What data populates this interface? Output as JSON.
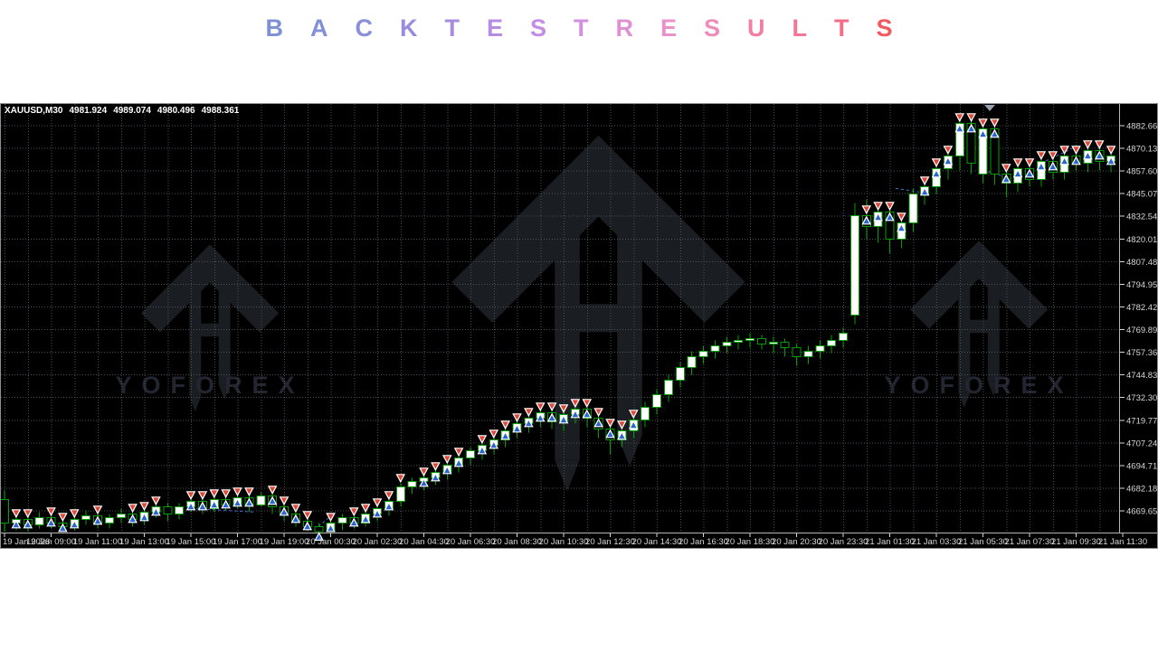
{
  "title": {
    "text": "BACKTEST RESULTS",
    "letters": [
      {
        "ch": "B",
        "color": "#7c90d6"
      },
      {
        "ch": "A",
        "color": "#8290d8"
      },
      {
        "ch": "C",
        "color": "#8b8eda"
      },
      {
        "ch": "K",
        "color": "#998cde"
      },
      {
        "ch": "T",
        "color": "#a98ce1"
      },
      {
        "ch": "E",
        "color": "#b78ce3"
      },
      {
        "ch": "S",
        "color": "#c58ce5"
      },
      {
        "ch": "T",
        "color": "#d28edf"
      },
      {
        "ch": "R",
        "color": "#df90d5"
      },
      {
        "ch": "E",
        "color": "#e992c9"
      },
      {
        "ch": "S",
        "color": "#ef8cba"
      },
      {
        "ch": "U",
        "color": "#f37ea4"
      },
      {
        "ch": "L",
        "color": "#f57594"
      },
      {
        "ch": "T",
        "color": "#f66c86"
      },
      {
        "ch": "S",
        "color": "#f25a60"
      }
    ]
  },
  "chart": {
    "header": {
      "symbol": "XAUUSD,M30",
      "open": "4981.924",
      "high": "4989.074",
      "low": "4980.496",
      "close": "4988.361"
    },
    "watermark": {
      "text": "YOFOREX"
    },
    "colors": {
      "background": "#000000",
      "grid": "#4a5058",
      "candle_green": "#00a000",
      "bull_fill": "#ffffff",
      "bear_fill": "#000000",
      "sell_marker": "#dc4737",
      "buy_marker": "#2e62cf",
      "marker_outline": "#ffffff",
      "axis_text": "#d6d6d6",
      "separator": "#b5b5b5",
      "trade_line": "#3f6fd8",
      "watermark_fill": "#1a1d21",
      "watermark_text": "#232630",
      "bar_position_triangle": "#95a1ae"
    }
  },
  "chart_data": {
    "type": "candlestick",
    "symbol": "XAUUSD",
    "timeframe": "M30",
    "x_axis": {
      "labels": [
        "19 Jan 2026",
        "19 Jan 09:00",
        "19 Jan 11:00",
        "19 Jan 13:00",
        "19 Jan 15:00",
        "19 Jan 17:00",
        "19 Jan 19:00",
        "20 Jan 00:30",
        "20 Jan 02:30",
        "20 Jan 04:30",
        "20 Jan 06:30",
        "20 Jan 08:30",
        "20 Jan 10:30",
        "20 Jan 12:30",
        "20 Jan 14:30",
        "20 Jan 16:30",
        "20 Jan 18:30",
        "20 Jan 20:30",
        "20 Jan 23:30",
        "21 Jan 01:30",
        "21 Jan 03:30",
        "21 Jan 05:30",
        "21 Jan 07:30",
        "21 Jan 09:30",
        "21 Jan 11:30"
      ],
      "candles_per_label": 4
    },
    "y_axis": {
      "ticks": [
        "4882.660",
        "4870.130",
        "4857.600",
        "4845.070",
        "4832.540",
        "4820.010",
        "4807.480",
        "4794.950",
        "4782.420",
        "4769.890",
        "4757.360",
        "4744.830",
        "4732.300",
        "4719.770",
        "4707.240",
        "4694.710",
        "4682.180",
        "4669.650"
      ],
      "tick_step": 12.53,
      "ylim": [
        4657.5,
        4888.5
      ]
    },
    "marker_legend": {
      "0": "none",
      "1": "sell-above-buy-below pair",
      "2": "sell arrow only",
      "3": "buy arrow only"
    },
    "candles": [
      [
        4676,
        4681,
        4658,
        4663,
        0
      ],
      [
        4663,
        4668,
        4659,
        4665,
        1
      ],
      [
        4665,
        4667,
        4658,
        4662,
        1
      ],
      [
        4662,
        4669,
        4660,
        4666,
        0
      ],
      [
        4666,
        4668,
        4660,
        4663,
        1
      ],
      [
        4663,
        4667,
        4658,
        4661,
        1
      ],
      [
        4661,
        4668,
        4659,
        4665,
        1
      ],
      [
        4665,
        4670,
        4662,
        4667,
        0
      ],
      [
        4667,
        4669,
        4660,
        4663,
        1
      ],
      [
        4663,
        4668,
        4660,
        4666,
        0
      ],
      [
        4666,
        4671,
        4663,
        4668,
        0
      ],
      [
        4668,
        4670,
        4661,
        4665,
        1
      ],
      [
        4665,
        4672,
        4662,
        4669,
        1
      ],
      [
        4669,
        4676,
        4666,
        4672,
        1
      ],
      [
        4672,
        4674,
        4664,
        4668,
        0
      ],
      [
        4668,
        4674,
        4665,
        4672,
        0
      ],
      [
        4672,
        4678,
        4669,
        4675,
        1
      ],
      [
        4675,
        4677,
        4668,
        4671,
        1
      ],
      [
        4671,
        4679,
        4669,
        4676,
        1
      ],
      [
        4676,
        4678,
        4670,
        4673,
        1
      ],
      [
        4673,
        4680,
        4671,
        4677,
        1
      ],
      [
        4677,
        4679,
        4669,
        4673,
        1
      ],
      [
        4673,
        4680,
        4672,
        4678,
        0
      ],
      [
        4678,
        4679,
        4668,
        4672,
        1
      ],
      [
        4672,
        4675,
        4664,
        4668,
        1
      ],
      [
        4668,
        4671,
        4661,
        4664,
        1
      ],
      [
        4664,
        4666,
        4658,
        4661,
        1
      ],
      [
        4661,
        4663,
        4657,
        4658,
        3
      ],
      [
        4658,
        4665,
        4657,
        4663,
        1
      ],
      [
        4663,
        4668,
        4659,
        4666,
        0
      ],
      [
        4666,
        4668,
        4660,
        4663,
        1
      ],
      [
        4663,
        4670,
        4661,
        4668,
        1
      ],
      [
        4668,
        4673,
        4664,
        4671,
        1
      ],
      [
        4671,
        4677,
        4667,
        4675,
        1
      ],
      [
        4675,
        4685,
        4672,
        4683,
        2
      ],
      [
        4683,
        4688,
        4679,
        4686,
        0
      ],
      [
        4686,
        4690,
        4681,
        4688,
        1
      ],
      [
        4688,
        4693,
        4684,
        4691,
        1
      ],
      [
        4691,
        4697,
        4687,
        4695,
        1
      ],
      [
        4695,
        4701,
        4691,
        4699,
        1
      ],
      [
        4699,
        4705,
        4695,
        4703,
        0
      ],
      [
        4703,
        4708,
        4698,
        4706,
        1
      ],
      [
        4706,
        4711,
        4701,
        4709,
        1
      ],
      [
        4709,
        4716,
        4705,
        4714,
        1
      ],
      [
        4714,
        4720,
        4710,
        4718,
        1
      ],
      [
        4718,
        4723,
        4713,
        4721,
        1
      ],
      [
        4721,
        4726,
        4716,
        4724,
        1
      ],
      [
        4724,
        4725,
        4715,
        4719,
        1
      ],
      [
        4719,
        4725,
        4714,
        4723,
        1
      ],
      [
        4723,
        4729,
        4718,
        4726,
        1
      ],
      [
        4726,
        4727,
        4716,
        4721,
        1
      ],
      [
        4721,
        4723,
        4710,
        4715,
        1
      ],
      [
        4715,
        4717,
        4701,
        4709,
        1
      ],
      [
        4709,
        4717,
        4705,
        4714,
        1
      ],
      [
        4714,
        4723,
        4710,
        4720,
        1
      ],
      [
        4720,
        4730,
        4716,
        4727,
        0
      ],
      [
        4727,
        4737,
        4723,
        4734,
        0
      ],
      [
        4734,
        4745,
        4730,
        4742,
        0
      ],
      [
        4742,
        4752,
        4738,
        4749,
        0
      ],
      [
        4749,
        4758,
        4745,
        4755,
        0
      ],
      [
        4755,
        4761,
        4751,
        4758,
        0
      ],
      [
        4758,
        4764,
        4754,
        4761,
        0
      ],
      [
        4761,
        4766,
        4757,
        4763,
        0
      ],
      [
        4763,
        4767,
        4759,
        4764,
        0
      ],
      [
        4764,
        4768,
        4760,
        4765,
        0
      ],
      [
        4765,
        4767,
        4759,
        4762,
        0
      ],
      [
        4762,
        4766,
        4757,
        4763,
        0
      ],
      [
        4763,
        4765,
        4755,
        4760,
        0
      ],
      [
        4760,
        4762,
        4750,
        4755,
        0
      ],
      [
        4755,
        4761,
        4751,
        4758,
        0
      ],
      [
        4758,
        4764,
        4754,
        4761,
        0
      ],
      [
        4761,
        4767,
        4757,
        4764,
        0
      ],
      [
        4764,
        4771,
        4760,
        4768,
        0
      ],
      [
        4778,
        4840,
        4773,
        4833,
        0
      ],
      [
        4833,
        4842,
        4820,
        4827,
        1
      ],
      [
        4827,
        4839,
        4818,
        4835,
        1
      ],
      [
        4835,
        4837,
        4812,
        4820,
        1
      ],
      [
        4820,
        4834,
        4815,
        4829,
        1
      ],
      [
        4829,
        4848,
        4824,
        4845,
        0
      ],
      [
        4845,
        4854,
        4839,
        4849,
        1
      ],
      [
        4849,
        4863,
        4845,
        4859,
        1
      ],
      [
        4859,
        4872,
        4853,
        4866,
        1
      ],
      [
        4866,
        4887,
        4858,
        4884,
        1
      ],
      [
        4884,
        4886,
        4856,
        4862,
        1
      ],
      [
        4856,
        4885,
        4851,
        4881,
        1
      ],
      [
        4881,
        4882,
        4850,
        4856,
        1
      ],
      [
        4856,
        4859,
        4843,
        4851,
        1
      ],
      [
        4851,
        4862,
        4846,
        4859,
        1
      ],
      [
        4859,
        4861,
        4849,
        4853,
        1
      ],
      [
        4853,
        4866,
        4849,
        4863,
        1
      ],
      [
        4863,
        4865,
        4853,
        4857,
        1
      ],
      [
        4857,
        4869,
        4853,
        4866,
        1
      ],
      [
        4866,
        4872,
        4858,
        4862,
        1
      ],
      [
        4862,
        4872,
        4857,
        4869,
        1
      ],
      [
        4869,
        4871,
        4858,
        4863,
        1
      ],
      [
        4863,
        4870,
        4857,
        4866,
        1
      ]
    ],
    "trade_lines": [
      [
        16,
        4671,
        21.5,
        4669
      ],
      [
        26.6,
        4659,
        28.4,
        4669
      ],
      [
        76.5,
        4848,
        78.5,
        4846
      ],
      [
        84,
        4858,
        86.6,
        4853
      ],
      [
        89,
        4862,
        92,
        4871
      ]
    ]
  }
}
